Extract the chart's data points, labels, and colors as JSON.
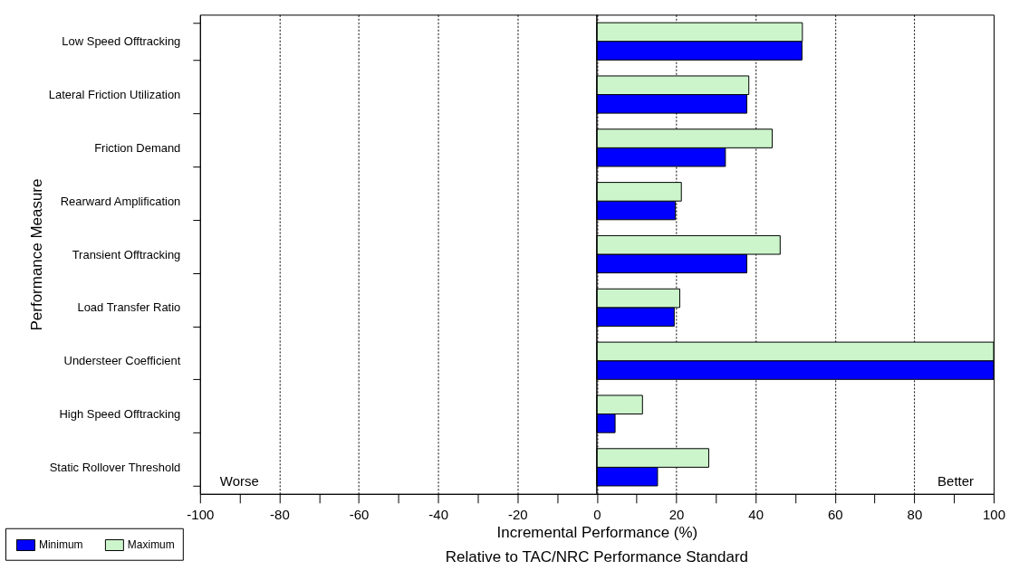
{
  "chart_data": {
    "type": "bar",
    "orientation": "horizontal",
    "categories": [
      "Low Speed Offtracking",
      "Lateral Friction Utilization",
      "Friction Demand",
      "Rearward Amplification",
      "Transient Offtracking",
      "Load Transfer Ratio",
      "Understeer Coefficient",
      "High Speed Offtracking",
      "Static Rollover Threshold"
    ],
    "series": [
      {
        "name": "Minimum",
        "color": "#0000ff",
        "values": [
          51.7,
          37.8,
          32.4,
          19.8,
          37.8,
          19.5,
          100,
          4.6,
          15.3
        ]
      },
      {
        "name": "Maximum",
        "color": "#ccf5cc",
        "values": [
          51.8,
          38.3,
          44.2,
          21.3,
          46.2,
          20.9,
          100,
          11.5,
          28.2
        ]
      }
    ],
    "xlim": [
      -100,
      100
    ],
    "xticks": [
      -100,
      {
        "value": -90,
        "label": null
      },
      -80,
      {
        "value": -70,
        "label": null
      },
      -60,
      {
        "value": -50,
        "label": null
      },
      -40,
      {
        "value": -30,
        "label": null
      },
      -20,
      {
        "value": -10,
        "label": null
      },
      0,
      {
        "value": 10,
        "label": null
      },
      20,
      {
        "value": 30,
        "label": null
      },
      40,
      {
        "value": 50,
        "label": null
      },
      60,
      {
        "value": 70,
        "label": null
      },
      80,
      {
        "value": 90,
        "label": null
      },
      100
    ],
    "xlabel": "Incremental Performance (%)",
    "ylabel": "Performance Measure",
    "annotations": [
      "Worse",
      "Better",
      "Relative  to TAC/NRC Performance Standard"
    ],
    "ref_lines": [
      {
        "axis": "x",
        "value": 0,
        "label": null
      }
    ],
    "grid": "x",
    "legend": "bottom left"
  }
}
